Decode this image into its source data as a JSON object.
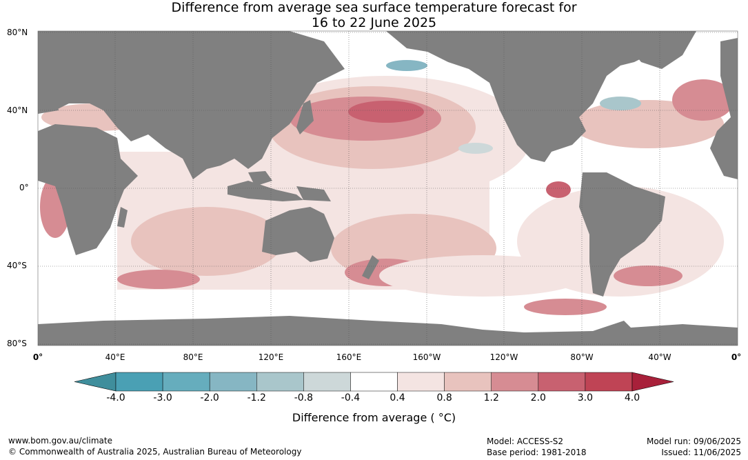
{
  "title_line1": "Difference from average sea surface temperature forecast for",
  "title_line2": "16 to 22 June 2025",
  "lat_labels": [
    "80°N",
    "40°N",
    "0°",
    "40°S",
    "80°S"
  ],
  "lon_labels": [
    "0°",
    "40°E",
    "80°E",
    "120°E",
    "160°E",
    "160°W",
    "120°W",
    "80°W",
    "40°W",
    "0°"
  ],
  "colorbar": {
    "ticks": [
      "-4.0",
      "-3.0",
      "-2.0",
      "-1.2",
      "-0.8",
      "-0.4",
      "0.4",
      "0.8",
      "1.2",
      "2.0",
      "3.0",
      "4.0"
    ],
    "colors": [
      "#3f8e9c",
      "#4aa0b4",
      "#66adbd",
      "#86b6c3",
      "#a9c6cb",
      "#cdd8d9",
      "#ffffff",
      "#f4e4e2",
      "#e8c3be",
      "#d68c93",
      "#c86170",
      "#bf4455",
      "#a8203a"
    ],
    "label": "Difference from average ( °C)"
  },
  "colors": {
    "land": "#808080",
    "ocean": "#ffffff",
    "sea_ice": "#ffffff"
  },
  "footer": {
    "url": "www.bom.gov.au/climate",
    "copyright": "© Commonwealth of Australia 2025, Australian Bureau of Meteorology",
    "model": "Model: ACCESS-S2",
    "base_period": "Base period: 1981-2018",
    "model_run": "Model run: 09/06/2025",
    "issued": "Issued: 11/06/2025"
  }
}
